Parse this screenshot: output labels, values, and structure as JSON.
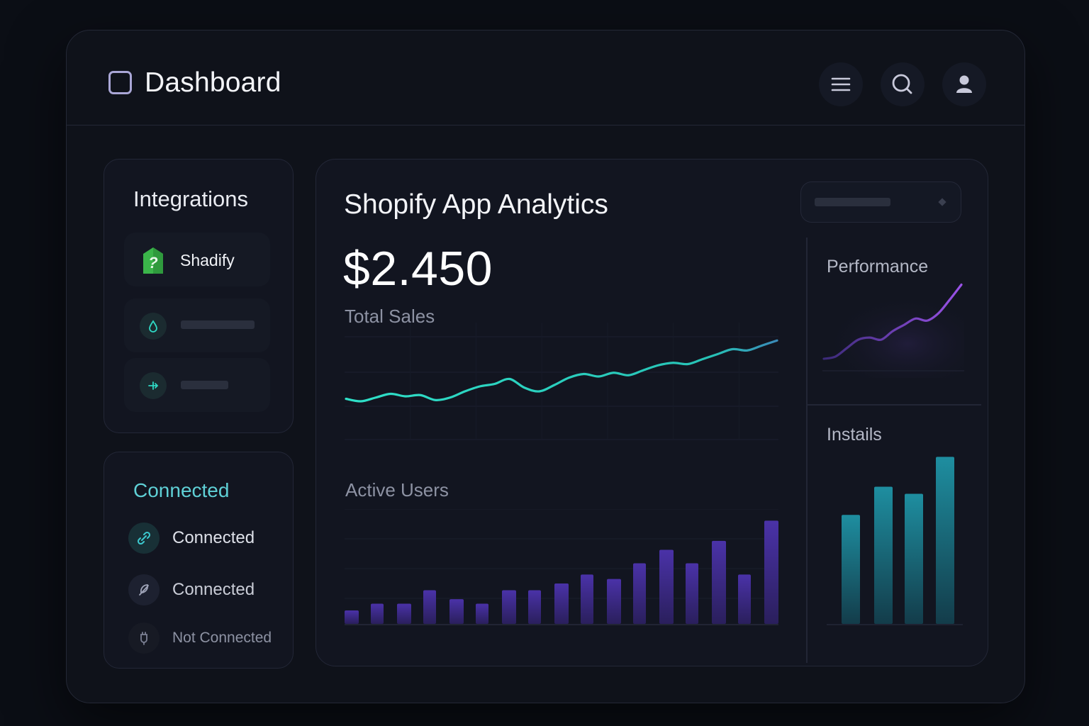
{
  "header": {
    "title": "Dashboard",
    "actions": [
      {
        "icon": "menu-icon"
      },
      {
        "icon": "search-icon"
      },
      {
        "icon": "user-icon"
      }
    ]
  },
  "integrations": {
    "title": "Integrations",
    "items": [
      {
        "label": "Shadify",
        "icon": "shopify-bag-icon"
      },
      {
        "label": "",
        "icon": "drop-icon"
      },
      {
        "label": "",
        "icon": "plug-icon"
      }
    ]
  },
  "connections": {
    "title": "Connected",
    "items": [
      {
        "label": "Connected",
        "icon": "link-icon",
        "status": "connected"
      },
      {
        "label": "Connected",
        "icon": "feather-icon",
        "status": "connected"
      },
      {
        "label": "Not Connected",
        "icon": "plug-icon",
        "status": "not-connected"
      }
    ]
  },
  "analytics": {
    "title": "Shopify App Analytics",
    "total_sales_value": "$2.450",
    "total_sales_label": "Total Sales",
    "active_users_label": "Active Users",
    "performance_label": "Performance",
    "installs_label": "Instails"
  },
  "colors": {
    "accent_teal": "#2fd8c4",
    "accent_purple": "#8a4de0",
    "connected_text": "#5fd0d6",
    "bar_purple": "#3a2a7a",
    "bar_teal": "#1d7f90"
  },
  "chart_data": [
    {
      "type": "line",
      "title": "Total Sales",
      "x": [
        1,
        2,
        3,
        4,
        5,
        6,
        7,
        8,
        9,
        10,
        11,
        12,
        13,
        14,
        15,
        16,
        17,
        18,
        19,
        20,
        21,
        22,
        23,
        24,
        25,
        26,
        27,
        28,
        29,
        30
      ],
      "values": [
        10,
        8,
        11,
        14,
        12,
        13,
        9,
        11,
        16,
        20,
        22,
        26,
        19,
        16,
        21,
        27,
        30,
        28,
        31,
        29,
        33,
        37,
        39,
        38,
        42,
        46,
        50,
        49,
        53,
        57
      ],
      "grid": true
    },
    {
      "type": "bar",
      "title": "Active Users",
      "values": [
        6,
        9,
        9,
        15,
        11,
        9,
        15,
        15,
        18,
        22,
        20,
        27,
        33,
        27,
        37,
        22,
        46
      ]
    },
    {
      "type": "line",
      "title": "Performance",
      "values": [
        2,
        4,
        12,
        20,
        22,
        20,
        28,
        34,
        40,
        38,
        45,
        58,
        72
      ]
    },
    {
      "type": "bar",
      "title": "Instails",
      "values": [
        62,
        78,
        74,
        95
      ]
    }
  ]
}
